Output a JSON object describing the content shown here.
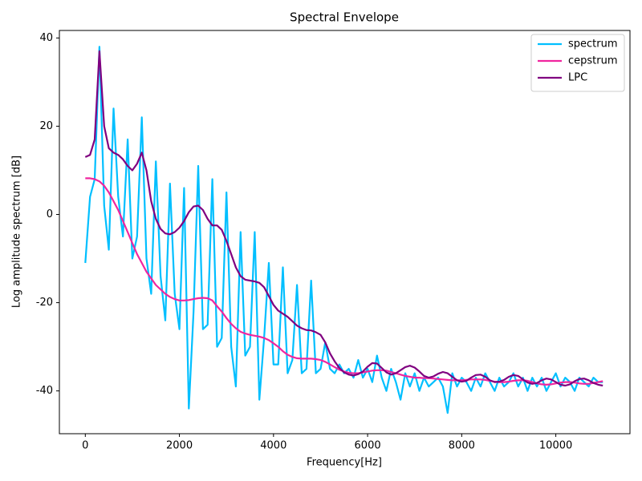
{
  "chart_data": {
    "type": "line",
    "title": "Spectral Envelope",
    "x_label": "Frequency[Hz]",
    "y_label": "Log amplitude spectrum [dB]",
    "x": [
      0,
      100,
      200,
      300,
      400,
      500,
      600,
      700,
      800,
      900,
      1000,
      1100,
      1200,
      1300,
      1400,
      1500,
      1600,
      1700,
      1800,
      1900,
      2000,
      2100,
      2200,
      2300,
      2400,
      2500,
      2600,
      2700,
      2800,
      2900,
      3000,
      3100,
      3200,
      3300,
      3400,
      3500,
      3600,
      3700,
      3800,
      3900,
      4000,
      4100,
      4200,
      4300,
      4400,
      4500,
      4600,
      4700,
      4800,
      4900,
      5000,
      5100,
      5200,
      5300,
      5400,
      5500,
      5600,
      5700,
      5800,
      5900,
      6000,
      6100,
      6200,
      6300,
      6400,
      6500,
      6600,
      6700,
      6800,
      6900,
      7000,
      7100,
      7200,
      7300,
      7400,
      7500,
      7600,
      7700,
      7800,
      7900,
      8000,
      8100,
      8200,
      8300,
      8400,
      8500,
      8600,
      8700,
      8800,
      8900,
      9000,
      9100,
      9200,
      9300,
      9400,
      9500,
      9600,
      9700,
      9800,
      9900,
      10000,
      10100,
      10200,
      10300,
      10400,
      10500,
      10600,
      10700,
      10800,
      10900,
      11000
    ],
    "series": [
      {
        "name": "spectrum",
        "color": "#00bfff",
        "values": [
          -11,
          4,
          8,
          38,
          2,
          -8,
          24,
          4,
          -5,
          17,
          -10,
          -5,
          22,
          -10,
          -18,
          12,
          -14,
          -24,
          7,
          -18,
          -26,
          6,
          -44,
          -22,
          11,
          -26,
          -25,
          8,
          -30,
          -28,
          5,
          -30,
          -39,
          -4,
          -32,
          -30,
          -4,
          -42,
          -28,
          -11,
          -34,
          -34,
          -12,
          -36,
          -33,
          -16,
          -36,
          -35,
          -15,
          -36,
          -35,
          -29,
          -35,
          -36,
          -34,
          -36,
          -35,
          -37,
          -33,
          -37,
          -35,
          -38,
          -32,
          -37,
          -40,
          -35,
          -38,
          -42,
          -36,
          -39,
          -36,
          -40,
          -37,
          -39,
          -38,
          -37,
          -39,
          -45,
          -36,
          -39,
          -37,
          -38,
          -40,
          -37,
          -39,
          -36,
          -38,
          -40,
          -37,
          -39,
          -38,
          -36,
          -39,
          -37,
          -40,
          -37,
          -39,
          -37,
          -40,
          -38,
          -36,
          -39,
          -37,
          -38,
          -40,
          -37,
          -38,
          -39,
          -37,
          -38,
          -38
        ]
      },
      {
        "name": "cepstrum",
        "color": "#f0259f",
        "values": [
          8.2,
          8.2,
          8,
          7.5,
          6.5,
          5,
          3,
          1,
          -1.5,
          -4,
          -6.5,
          -9,
          -11,
          -13,
          -14.5,
          -16,
          -17,
          -18,
          -18.7,
          -19.2,
          -19.5,
          -19.5,
          -19.4,
          -19.2,
          -19,
          -18.9,
          -19,
          -19.5,
          -20.8,
          -22,
          -23.5,
          -24.8,
          -25.8,
          -26.6,
          -27,
          -27.3,
          -27.5,
          -27.7,
          -28,
          -28.5,
          -29.2,
          -30,
          -31,
          -31.8,
          -32.3,
          -32.6,
          -32.7,
          -32.7,
          -32.7,
          -32.8,
          -33,
          -33.4,
          -34,
          -34.6,
          -35.2,
          -35.6,
          -35.9,
          -36,
          -36,
          -35.8,
          -35.6,
          -35.4,
          -35.3,
          -35.3,
          -35.4,
          -35.7,
          -36,
          -36.3,
          -36.6,
          -36.8,
          -37,
          -37,
          -37.1,
          -37.1,
          -37.2,
          -37.3,
          -37.4,
          -37.5,
          -37.6,
          -37.6,
          -37.6,
          -37.5,
          -37.4,
          -37.4,
          -37.4,
          -37.5,
          -37.7,
          -37.9,
          -38,
          -38,
          -37.9,
          -37.7,
          -37.6,
          -37.6,
          -37.7,
          -38,
          -38.3,
          -38.5,
          -38.6,
          -38.5,
          -38.3,
          -38.1,
          -38,
          -38,
          -38.1,
          -38.3,
          -38.4,
          -38.4,
          -38.2,
          -38,
          -37.8
        ]
      },
      {
        "name": "LPC",
        "color": "#800080",
        "values": [
          13,
          13.5,
          17,
          37,
          20,
          15,
          14,
          13.5,
          12.5,
          11,
          10,
          11.5,
          14,
          10,
          3,
          -1,
          -3.3,
          -4.3,
          -4.5,
          -4,
          -3,
          -1.5,
          0.5,
          1.8,
          2,
          1,
          -1,
          -2.5,
          -2.5,
          -3.5,
          -6,
          -9,
          -12,
          -14,
          -14.8,
          -15,
          -15.2,
          -15.5,
          -16.5,
          -18.5,
          -20.5,
          -21.8,
          -22.5,
          -23.2,
          -24.2,
          -25.2,
          -25.8,
          -26.2,
          -26.3,
          -26.7,
          -27.3,
          -29,
          -31.5,
          -33.3,
          -34.8,
          -35.8,
          -36.3,
          -36.5,
          -36.2,
          -35.6,
          -34.5,
          -33.7,
          -33.8,
          -34.8,
          -35.8,
          -36.3,
          -36,
          -35.3,
          -34.6,
          -34.3,
          -34.7,
          -35.6,
          -36.6,
          -37,
          -36.7,
          -36.1,
          -35.7,
          -36,
          -36.8,
          -37.6,
          -37.9,
          -37.7,
          -37,
          -36.4,
          -36.3,
          -36.8,
          -37.6,
          -38,
          -37.9,
          -37.5,
          -36.8,
          -36.4,
          -36.6,
          -37.4,
          -38.1,
          -38.4,
          -38.2,
          -37.6,
          -37.2,
          -37.4,
          -38,
          -38.6,
          -38.8,
          -38.5,
          -37.8,
          -37.3,
          -37.2,
          -37.6,
          -38.2,
          -38.6,
          -38.8
        ]
      }
    ],
    "xlim": [
      -551,
      11576
    ],
    "ylim": [
      -49.7,
      41.7
    ],
    "xticks": [
      0,
      2000,
      4000,
      6000,
      8000,
      10000
    ],
    "yticks": [
      -40,
      -20,
      0,
      20,
      40
    ],
    "legend": "upper right"
  }
}
